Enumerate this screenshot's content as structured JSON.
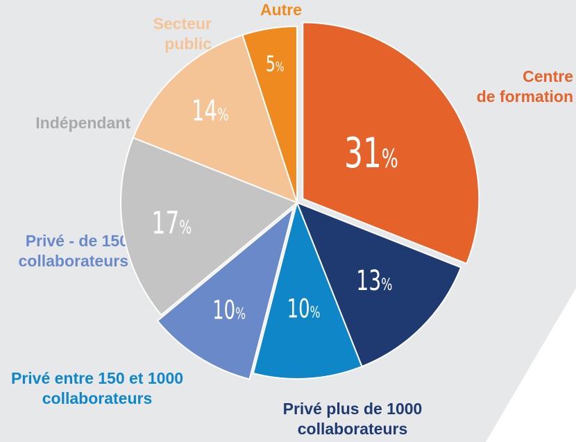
{
  "chart_data": {
    "type": "pie",
    "categories": [
      "Centre de formation",
      "Privé plus de 1000 collaborateurs",
      "Privé entre 150 et 1000 collaborateurs",
      "Privé - de 150 collaborateurs",
      "Indépendant",
      "Secteur public",
      "Autre"
    ],
    "values": [
      31,
      13,
      10,
      10,
      17,
      14,
      5
    ],
    "value_labels": [
      "31%",
      "13%",
      "10%",
      "10%",
      "17%",
      "14%",
      "5%"
    ],
    "colors": [
      "#e5622b",
      "#1f3a70",
      "#0f86c8",
      "#6a89c9",
      "#c4c4c4",
      "#f4c497",
      "#ee8a1f"
    ],
    "explode": [
      true,
      false,
      false,
      true,
      false,
      false,
      false
    ],
    "start_angle": "top",
    "direction": "clockwise"
  }
}
